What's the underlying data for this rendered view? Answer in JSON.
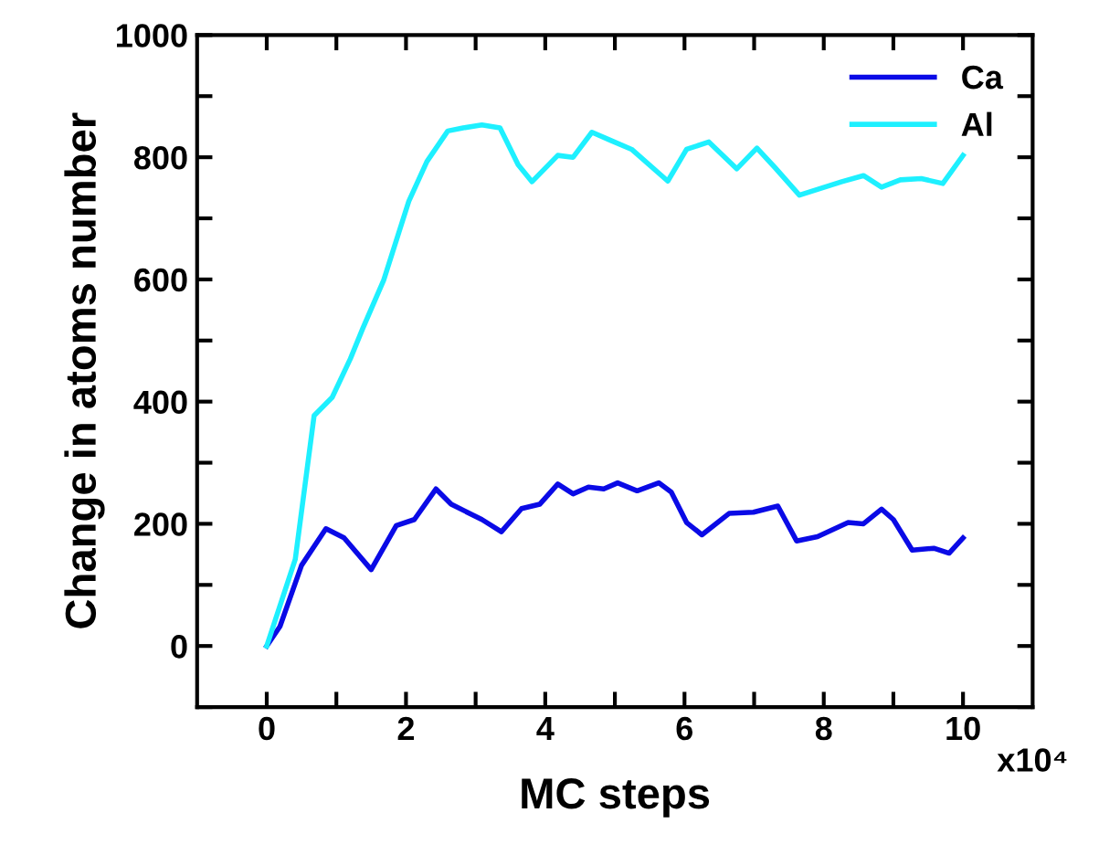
{
  "chart_data": {
    "type": "line",
    "xlabel": "MC steps",
    "ylabel": "Change in atoms number",
    "annotations": [
      "x10⁴"
    ],
    "series": [
      {
        "name": "Ca",
        "color": "#0a0ae6",
        "x": [
          0,
          0.19,
          0.5,
          0.85,
          1.11,
          1.5,
          1.86,
          2.12,
          2.43,
          2.65,
          3.09,
          3.37,
          3.66,
          3.92,
          4.18,
          4.4,
          4.62,
          4.84,
          5.04,
          5.32,
          5.63,
          5.81,
          6.03,
          6.25,
          6.64,
          6.99,
          7.34,
          7.61,
          7.91,
          8.35,
          8.57,
          8.83,
          9.0,
          9.27,
          9.58,
          9.8,
          10.0
        ],
        "values": [
          0,
          32,
          132,
          192,
          177,
          125,
          197,
          207,
          257,
          232,
          207,
          187,
          225,
          232,
          265,
          249,
          260,
          257,
          267,
          254,
          267,
          252,
          202,
          182,
          217,
          219,
          229,
          172,
          179,
          202,
          200,
          224,
          207,
          157,
          160,
          152,
          177
        ]
      },
      {
        "name": "Al",
        "color": "#1ef0ff",
        "x": [
          0,
          0.41,
          0.68,
          0.94,
          1.2,
          1.38,
          1.68,
          2.04,
          2.3,
          2.6,
          2.82,
          3.09,
          3.35,
          3.61,
          3.81,
          4.18,
          4.4,
          4.67,
          4.93,
          5.24,
          5.76,
          6.03,
          6.35,
          6.75,
          7.04,
          7.3,
          7.65,
          8.26,
          8.57,
          8.83,
          9.1,
          9.4,
          9.71,
          10.0
        ],
        "values": [
          0,
          142,
          377,
          407,
          470,
          520,
          599,
          728,
          793,
          843,
          848,
          853,
          848,
          788,
          760,
          803,
          800,
          841,
          828,
          813,
          761,
          813,
          825,
          781,
          815,
          783,
          738,
          760,
          770,
          751,
          763,
          765,
          757,
          803
        ]
      }
    ],
    "xlim": [
      -1,
      11
    ],
    "ylim": [
      -100,
      1000
    ],
    "xticks": [
      0,
      {
        "value": 1,
        "label": null
      },
      2,
      {
        "value": 3,
        "label": null
      },
      4,
      {
        "value": 5,
        "label": null
      },
      6,
      {
        "value": 7,
        "label": null
      },
      8,
      {
        "value": 9,
        "label": null
      },
      10
    ],
    "yticks": [
      {
        "value": -100,
        "label": null
      },
      0,
      {
        "value": 100,
        "label": null
      },
      200,
      {
        "value": 300,
        "label": null
      },
      400,
      {
        "value": 500,
        "label": null
      },
      600,
      {
        "value": 700,
        "label": null
      },
      800,
      {
        "value": 900,
        "label": null
      },
      1000
    ],
    "grid": false,
    "legend": "top right",
    "marker": "none",
    "line_style": "solid"
  }
}
